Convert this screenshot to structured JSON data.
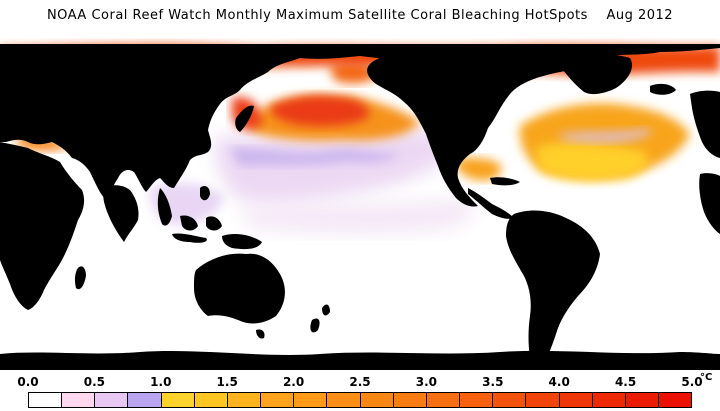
{
  "title": "NOAA Coral Reef Watch Monthly Maximum Satellite Coral Bleaching HotSpots    Aug 2012",
  "map": {
    "land_color": "#000000",
    "ocean_color": "#ffffff",
    "hotspot_colors": {
      "pale_pink": "#f7e3f1",
      "lavender": "#e3c6f0",
      "violet": "#c3a9ee",
      "yellow": "#ffcf2a",
      "orange": "#f6891e",
      "red_orange": "#ea3b14"
    }
  },
  "scale": {
    "ticks": [
      "0.0",
      "0.5",
      "1.0",
      "1.5",
      "2.0",
      "2.5",
      "3.0",
      "3.5",
      "4.0",
      "4.5",
      "5.0"
    ],
    "unit": "°C",
    "colors": [
      "#ffffff",
      "#ffd7ef",
      "#e8c7f3",
      "#b9a6ee",
      "#ffd22c",
      "#ffc624",
      "#ffb41f",
      "#ffa31c",
      "#ff9a18",
      "#fc8f16",
      "#fa8714",
      "#f97d12",
      "#f76f10",
      "#f5610e",
      "#f3520c",
      "#f1440a",
      "#ef3608",
      "#ee2906",
      "#ec1c04",
      "#ea1002"
    ]
  }
}
